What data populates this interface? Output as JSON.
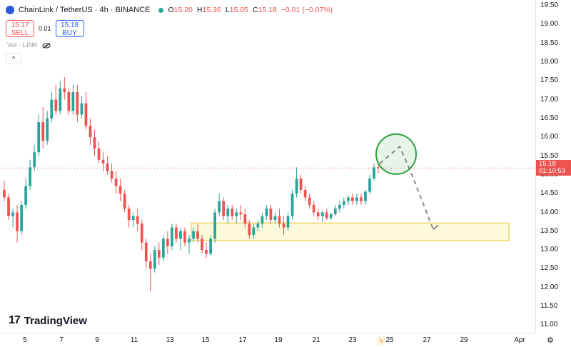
{
  "header": {
    "title": "ChainLink / TetherUS · 4h · BINANCE",
    "ohlc": [
      {
        "k": "O",
        "v": "15.20"
      },
      {
        "k": "H",
        "v": "15.36"
      },
      {
        "k": "L",
        "v": "15.05"
      },
      {
        "k": "C",
        "v": "15.18"
      },
      {
        "k": "",
        "v": "−0.01 (−0.07%)"
      }
    ]
  },
  "trade": {
    "sell_price": "15.17",
    "sell_label": "SELL",
    "spread": "0.01",
    "buy_price": "15.18",
    "buy_label": "BUY"
  },
  "volume_label": "Vol · LINK",
  "price_tag": {
    "price": "15.18",
    "countdown": "01:10:53"
  },
  "brand": "TradingView",
  "colors": {
    "up": "#26a69a",
    "down": "#ef5350",
    "zone": "#fff9db",
    "circle": "#2e9e3e"
  },
  "price_axis": [
    "19.50",
    "19.00",
    "18.50",
    "18.00",
    "17.50",
    "17.00",
    "16.50",
    "16.00",
    "15.50",
    "15.00",
    "14.50",
    "14.00",
    "13.50",
    "13.00",
    "12.50",
    "12.00",
    "11.50",
    "11.00"
  ],
  "time_axis": [
    "5",
    "7",
    "9",
    "11",
    "13",
    "15",
    "17",
    "19",
    "21",
    "23",
    "25",
    "27",
    "29",
    "Apr"
  ],
  "chart_data": {
    "type": "candlestick",
    "ylim": [
      10.8,
      19.65
    ],
    "x_ticks": [
      "5",
      "7",
      "9",
      "11",
      "13",
      "15",
      "17",
      "19",
      "21",
      "23",
      "25",
      "27",
      "29",
      "Apr"
    ],
    "current_price": 15.18,
    "candles": [
      [
        14.6,
        14.85,
        14.3,
        14.4
      ],
      [
        14.4,
        14.5,
        13.8,
        13.9
      ],
      [
        13.9,
        14.1,
        13.6,
        14.0
      ],
      [
        14.0,
        14.2,
        13.2,
        13.5
      ],
      [
        13.5,
        14.3,
        13.4,
        14.2
      ],
      [
        14.2,
        14.9,
        14.1,
        14.7
      ],
      [
        14.7,
        15.4,
        14.6,
        15.2
      ],
      [
        15.2,
        15.8,
        15.1,
        15.6
      ],
      [
        15.6,
        16.6,
        15.5,
        16.4
      ],
      [
        16.4,
        16.8,
        15.7,
        15.9
      ],
      [
        15.9,
        16.7,
        15.8,
        16.5
      ],
      [
        16.5,
        17.2,
        16.4,
        17.0
      ],
      [
        17.0,
        17.4,
        16.6,
        16.7
      ],
      [
        16.7,
        17.5,
        16.6,
        17.3
      ],
      [
        17.3,
        17.6,
        17.0,
        17.2
      ],
      [
        17.2,
        17.3,
        16.6,
        16.7
      ],
      [
        16.7,
        17.4,
        16.6,
        17.2
      ],
      [
        17.2,
        17.4,
        16.4,
        16.6
      ],
      [
        16.6,
        17.1,
        16.5,
        16.9
      ],
      [
        16.9,
        17.2,
        16.2,
        16.3
      ],
      [
        16.3,
        16.5,
        15.8,
        16.0
      ],
      [
        16.0,
        16.2,
        15.5,
        15.7
      ],
      [
        15.7,
        15.9,
        15.3,
        15.4
      ],
      [
        15.4,
        15.6,
        15.1,
        15.3
      ],
      [
        15.3,
        15.5,
        15.0,
        15.1
      ],
      [
        15.1,
        15.3,
        14.8,
        14.9
      ],
      [
        14.9,
        15.1,
        14.5,
        14.7
      ],
      [
        14.7,
        14.9,
        14.3,
        14.5
      ],
      [
        14.5,
        14.6,
        14.0,
        14.1
      ],
      [
        14.1,
        14.2,
        13.6,
        13.8
      ],
      [
        13.8,
        14.0,
        13.6,
        13.9
      ],
      [
        13.9,
        14.1,
        13.5,
        13.7
      ],
      [
        13.7,
        13.8,
        13.0,
        13.2
      ],
      [
        13.2,
        13.3,
        12.5,
        12.7
      ],
      [
        12.7,
        12.9,
        11.9,
        12.5
      ],
      [
        12.5,
        13.1,
        12.4,
        13.0
      ],
      [
        13.0,
        13.2,
        12.6,
        12.8
      ],
      [
        12.8,
        13.4,
        12.7,
        13.3
      ],
      [
        13.3,
        13.5,
        12.9,
        13.1
      ],
      [
        13.1,
        13.7,
        13.0,
        13.6
      ],
      [
        13.6,
        13.7,
        13.2,
        13.3
      ],
      [
        13.3,
        13.6,
        13.0,
        13.5
      ],
      [
        13.5,
        13.6,
        13.1,
        13.2
      ],
      [
        13.2,
        13.4,
        12.9,
        13.3
      ],
      [
        13.3,
        13.6,
        13.2,
        13.5
      ],
      [
        13.5,
        13.7,
        13.2,
        13.3
      ],
      [
        13.3,
        13.4,
        12.9,
        13.0
      ],
      [
        13.0,
        13.2,
        12.8,
        12.9
      ],
      [
        12.9,
        13.4,
        12.85,
        13.3
      ],
      [
        13.3,
        14.1,
        13.2,
        14.0
      ],
      [
        14.0,
        14.5,
        13.9,
        14.3
      ],
      [
        14.3,
        14.4,
        13.8,
        13.9
      ],
      [
        13.9,
        14.2,
        13.7,
        14.1
      ],
      [
        14.1,
        14.2,
        13.8,
        13.9
      ],
      [
        13.9,
        14.1,
        13.7,
        14.0
      ],
      [
        14.0,
        14.2,
        13.8,
        13.95
      ],
      [
        13.95,
        14.1,
        13.6,
        13.7
      ],
      [
        13.7,
        13.8,
        13.3,
        13.4
      ],
      [
        13.4,
        13.7,
        13.3,
        13.6
      ],
      [
        13.6,
        13.8,
        13.5,
        13.7
      ],
      [
        13.7,
        14.0,
        13.6,
        13.9
      ],
      [
        13.9,
        14.2,
        13.8,
        14.1
      ],
      [
        14.1,
        14.2,
        13.7,
        13.8
      ],
      [
        13.8,
        14.0,
        13.7,
        13.9
      ],
      [
        13.9,
        14.1,
        13.6,
        13.7
      ],
      [
        13.7,
        13.9,
        13.4,
        13.6
      ],
      [
        13.6,
        14.0,
        13.5,
        13.9
      ],
      [
        13.9,
        14.6,
        13.8,
        14.5
      ],
      [
        14.5,
        15.2,
        14.4,
        14.9
      ],
      [
        14.9,
        15.0,
        14.5,
        14.6
      ],
      [
        14.6,
        14.7,
        14.3,
        14.4
      ],
      [
        14.4,
        14.5,
        14.1,
        14.2
      ],
      [
        14.2,
        14.3,
        13.9,
        14.0
      ],
      [
        14.0,
        14.1,
        13.8,
        13.9
      ],
      [
        13.9,
        14.05,
        13.75,
        14.0
      ],
      [
        14.0,
        14.1,
        13.8,
        13.85
      ],
      [
        13.85,
        14.0,
        13.8,
        13.95
      ],
      [
        13.95,
        14.2,
        13.9,
        14.1
      ],
      [
        14.1,
        14.3,
        14.0,
        14.2
      ],
      [
        14.2,
        14.4,
        14.1,
        14.3
      ],
      [
        14.3,
        14.45,
        14.2,
        14.4
      ],
      [
        14.4,
        14.5,
        14.2,
        14.3
      ],
      [
        14.3,
        14.5,
        14.2,
        14.4
      ],
      [
        14.4,
        14.5,
        14.2,
        14.3
      ],
      [
        14.3,
        14.6,
        14.2,
        14.55
      ],
      [
        14.55,
        15.0,
        14.5,
        14.9
      ],
      [
        14.9,
        15.3,
        14.85,
        15.2
      ],
      [
        15.2,
        15.36,
        15.05,
        15.18
      ]
    ],
    "annotations": {
      "support_zone": [
        13.25,
        13.72
      ],
      "projection": [
        {
          "t": "Mar 24",
          "p": 15.3
        },
        {
          "t": "Mar 25",
          "p": 15.75
        },
        {
          "t": "Mar 26",
          "p": 15.1
        },
        {
          "t": "Mar 27",
          "p": 13.55
        }
      ],
      "highlight_circle_center": 15.55
    }
  }
}
